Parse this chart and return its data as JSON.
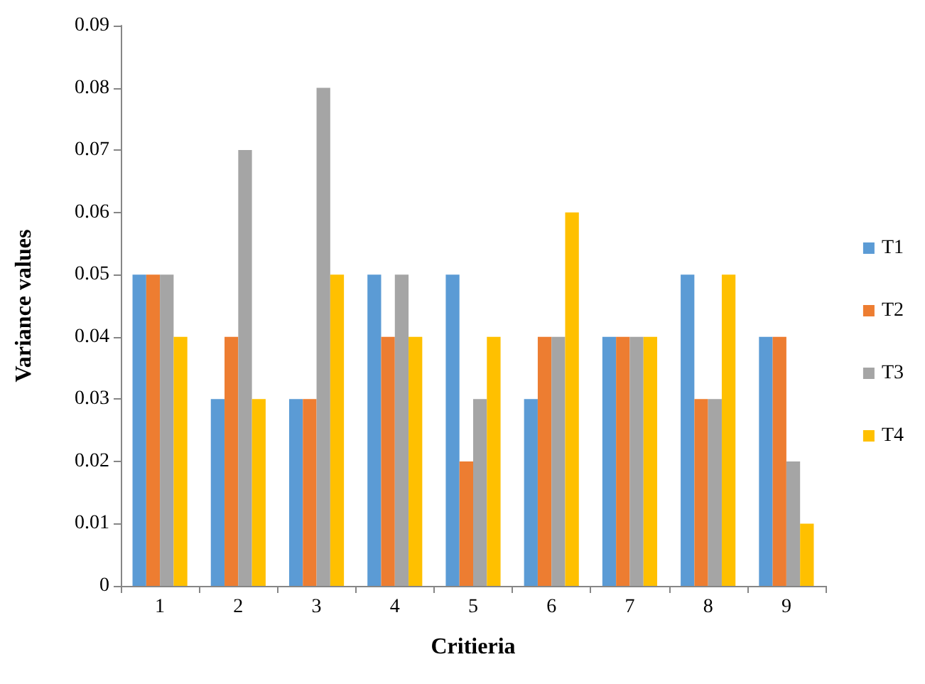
{
  "chart_data": {
    "type": "bar",
    "xlabel": "Critieria",
    "ylabel": "Variance values",
    "categories": [
      "1",
      "2",
      "3",
      "4",
      "5",
      "6",
      "7",
      "8",
      "9"
    ],
    "series": [
      {
        "name": "T1",
        "color": "#5b9bd5",
        "values": [
          0.05,
          0.03,
          0.03,
          0.05,
          0.05,
          0.03,
          0.04,
          0.05,
          0.04
        ]
      },
      {
        "name": "T2",
        "color": "#ed7d31",
        "values": [
          0.05,
          0.04,
          0.03,
          0.04,
          0.02,
          0.04,
          0.04,
          0.03,
          0.04
        ]
      },
      {
        "name": "T3",
        "color": "#a5a5a5",
        "values": [
          0.05,
          0.07,
          0.08,
          0.05,
          0.03,
          0.04,
          0.04,
          0.03,
          0.02
        ]
      },
      {
        "name": "T4",
        "color": "#ffc000",
        "values": [
          0.04,
          0.03,
          0.05,
          0.04,
          0.04,
          0.06,
          0.04,
          0.05,
          0.01
        ]
      }
    ],
    "ylim": [
      0,
      0.09
    ],
    "yticks": [
      0,
      0.01,
      0.02,
      0.03,
      0.04,
      0.05,
      0.06,
      0.07,
      0.08,
      0.09
    ],
    "grid": false,
    "legend": "right"
  }
}
